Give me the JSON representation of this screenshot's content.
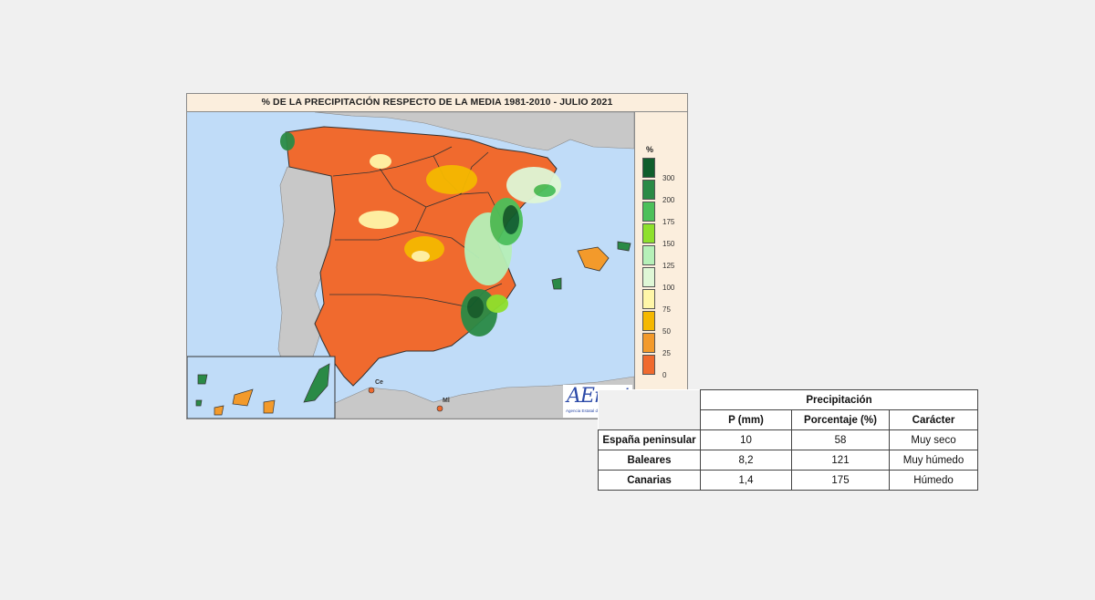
{
  "map": {
    "title": "% DE LA PRECIPITACIÓN RESPECTO DE LA MEDIA 1981-2010 - JULIO 2021",
    "legend": {
      "unit": "%",
      "levels": [
        {
          "label": "300",
          "color": "#0f5e2c"
        },
        {
          "label": "200",
          "color": "#2a8a46"
        },
        {
          "label": "175",
          "color": "#4cc05a"
        },
        {
          "label": "150",
          "color": "#8ee02c"
        },
        {
          "label": "125",
          "color": "#b6f0b8"
        },
        {
          "label": "100",
          "color": "#dff7d6"
        },
        {
          "label": "75",
          "color": "#fff6a8"
        },
        {
          "label": "50",
          "color": "#f5b800"
        },
        {
          "label": "25",
          "color": "#f39a2b"
        },
        {
          "label": "0",
          "color": "#f06a2e"
        }
      ]
    },
    "place_labels": {
      "ceuta": "Ce",
      "melilla": "Ml"
    },
    "logo": {
      "text": "AEmet",
      "subtitle": "Agencia Estatal de Meteorología"
    },
    "colors": {
      "sea": "#c0dcf8",
      "land_outside": "#c8c8c8",
      "panel_bg": "#fbeedd"
    }
  },
  "table": {
    "group_header": "Precipitación",
    "columns": [
      "P (mm)",
      "Porcentaje (%)",
      "Carácter"
    ],
    "rows": [
      {
        "region": "España peninsular",
        "p_mm": "10",
        "porcentaje": "58",
        "caracter": "Muy seco"
      },
      {
        "region": "Baleares",
        "p_mm": "8,2",
        "porcentaje": "121",
        "caracter": "Muy húmedo"
      },
      {
        "region": "Canarias",
        "p_mm": "1,4",
        "porcentaje": "175",
        "caracter": "Húmedo"
      }
    ]
  }
}
